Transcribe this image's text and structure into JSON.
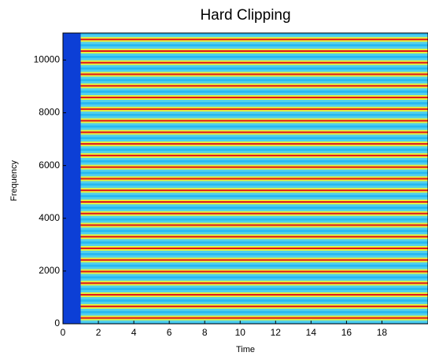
{
  "chart_data": {
    "type": "spectrogram",
    "title": "Hard Clipping",
    "x_label": "Time",
    "y_label": "Frequency",
    "xlim": [
      0,
      20.6
    ],
    "ylim": [
      0,
      11025
    ],
    "xticks": [
      0,
      2,
      4,
      6,
      8,
      10,
      12,
      14,
      16,
      18
    ],
    "yticks": [
      0,
      2000,
      4000,
      6000,
      8000,
      10000
    ],
    "onset": 1.0,
    "harmonics": [
      220,
      660,
      1100,
      1540,
      1980,
      2420,
      2860,
      3300,
      3740,
      4180,
      4620,
      5060,
      5500,
      5940,
      6380,
      6820,
      7260,
      7700,
      8140,
      8580,
      9020,
      9460,
      9900,
      10340,
      10780
    ],
    "colors": {
      "background": "#27b8f2",
      "pre_onset": "#0c3fd6",
      "harmonic": "#e0141c",
      "halo": "#e8f23c",
      "band": "#6fe0e8"
    }
  }
}
